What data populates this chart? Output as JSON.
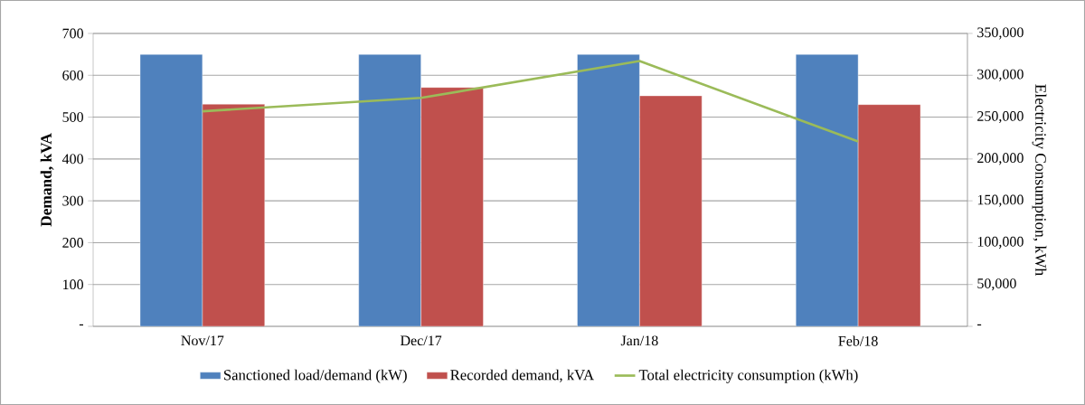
{
  "chart_data": {
    "type": "bar",
    "categories": [
      "Nov/17",
      "Dec/17",
      "Jan/18",
      "Feb/18"
    ],
    "ylabel": "Demand, kVA",
    "y2label": "Electricity Consumption, kWh",
    "ylim": [
      0,
      700
    ],
    "yticks": [
      {
        "value": 0,
        "label": "-"
      },
      100,
      200,
      300,
      400,
      500,
      600,
      700
    ],
    "y2lim": [
      0,
      350000
    ],
    "y2ticks": [
      {
        "value": 0,
        "label": "-"
      },
      {
        "value": 50000,
        "label": "50,000"
      },
      {
        "value": 100000,
        "label": "100,000"
      },
      {
        "value": 150000,
        "label": "150,000"
      },
      {
        "value": 200000,
        "label": "200,000"
      },
      {
        "value": 250000,
        "label": "250,000"
      },
      {
        "value": 300000,
        "label": "300,000"
      },
      {
        "value": 350000,
        "label": "350,000"
      }
    ],
    "grid": "y",
    "legend": "bottom",
    "marker": "none",
    "series": [
      {
        "name": "Sanctioned load/demand (kW)",
        "color": "#4f81bd",
        "values": [
          650,
          650,
          650,
          650
        ]
      },
      {
        "name": "Recorded demand, kVA",
        "color": "#c0504d",
        "values": [
          531,
          571,
          551,
          530
        ]
      },
      {
        "name": "Total electricity consumption (kWh)",
        "type": "line",
        "axis": "y2",
        "color": "#9bbb59",
        "values": [
          257000,
          273000,
          317000,
          221000
        ]
      }
    ]
  }
}
